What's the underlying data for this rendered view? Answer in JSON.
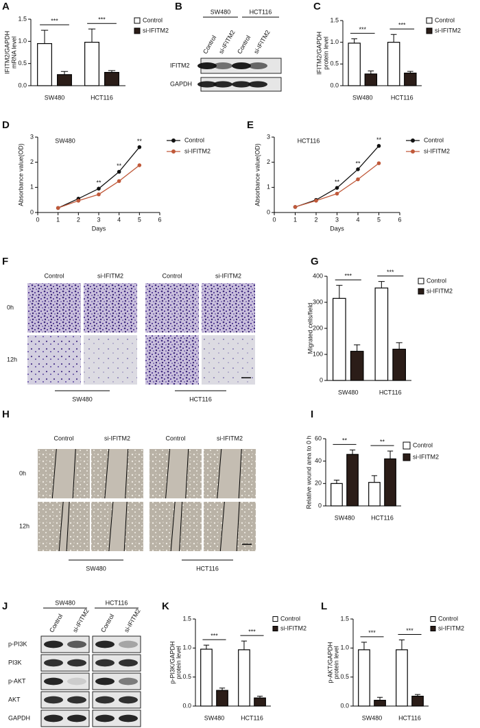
{
  "chart_data": [
    {
      "type": "bar",
      "panel": "A",
      "categories": [
        "SW480",
        "HCT116"
      ],
      "series": [
        {
          "name": "Control",
          "color": "#ffffff",
          "values": [
            0.95,
            0.98
          ],
          "errors": [
            0.3,
            0.3
          ]
        },
        {
          "name": "si-IFITM2",
          "color": "#2b1d18",
          "values": [
            0.25,
            0.3
          ],
          "errors": [
            0.07,
            0.04
          ]
        }
      ],
      "significance": [
        "***",
        "***"
      ],
      "y_label": [
        "IFITM2/GAPDH",
        "mRNA level"
      ],
      "ylim": [
        0,
        1.5
      ],
      "yticks": [
        {
          "value": 0,
          "label": "0.0"
        },
        0.5,
        {
          "value": 1,
          "label": "1.0"
        },
        1.5
      ]
    },
    {
      "type": "bar",
      "panel": "C",
      "categories": [
        "SW480",
        "HCT116"
      ],
      "series": [
        {
          "name": "Control",
          "color": "#ffffff",
          "values": [
            0.98,
            1.0
          ],
          "errors": [
            0.1,
            0.18
          ]
        },
        {
          "name": "si-IFITM2",
          "color": "#2b1d18",
          "values": [
            0.27,
            0.29
          ],
          "errors": [
            0.07,
            0.04
          ]
        }
      ],
      "significance": [
        "***",
        "***"
      ],
      "y_label": [
        "IFITM2/GAPDH",
        "protein level"
      ],
      "ylim": [
        0,
        1.5
      ],
      "yticks": [
        {
          "value": 0,
          "label": "0.0"
        },
        0.5,
        {
          "value": 1,
          "label": "1.0"
        },
        1.5
      ]
    },
    {
      "type": "line",
      "panel": "D",
      "title": "SW480",
      "x": [
        1,
        2,
        3,
        4,
        5
      ],
      "series": [
        {
          "name": "Control",
          "color": "#111111",
          "values": [
            0.18,
            0.55,
            0.95,
            1.62,
            2.6
          ]
        },
        {
          "name": "si-IFITM2",
          "color": "#c0593a",
          "values": [
            0.18,
            0.47,
            0.72,
            1.25,
            1.88
          ]
        }
      ],
      "significance": [
        null,
        null,
        "**",
        "**",
        "**"
      ],
      "x_label": "Days",
      "y_label": [
        "Absorbance value(OD)"
      ],
      "xlim": [
        0,
        6
      ],
      "xticks": [
        0,
        1,
        2,
        3,
        4,
        5,
        6
      ],
      "ylim": [
        0,
        3
      ],
      "yticks": [
        0,
        1,
        2,
        3
      ]
    },
    {
      "type": "line",
      "panel": "E",
      "title": "HCT116",
      "x": [
        1,
        2,
        3,
        4,
        5
      ],
      "series": [
        {
          "name": "Control",
          "color": "#111111",
          "values": [
            0.22,
            0.5,
            0.98,
            1.72,
            2.65
          ]
        },
        {
          "name": "si-IFITM2",
          "color": "#c0593a",
          "values": [
            0.22,
            0.47,
            0.75,
            1.32,
            1.96
          ]
        }
      ],
      "significance": [
        null,
        null,
        "**",
        "**",
        "**"
      ],
      "x_label": "Days",
      "y_label": [
        "Absorbance value(OD)"
      ],
      "xlim": [
        0,
        6
      ],
      "xticks": [
        0,
        1,
        2,
        3,
        4,
        5,
        6
      ],
      "ylim": [
        0,
        3
      ],
      "yticks": [
        0,
        1,
        2,
        3
      ]
    },
    {
      "type": "bar",
      "panel": "G",
      "categories": [
        "SW480",
        "HCT116"
      ],
      "series": [
        {
          "name": "Control",
          "color": "#ffffff",
          "values": [
            315,
            355
          ],
          "errors": [
            50,
            25
          ]
        },
        {
          "name": "si-IFITM2",
          "color": "#2b1d18",
          "values": [
            112,
            120
          ],
          "errors": [
            25,
            25
          ]
        }
      ],
      "significance": [
        "***",
        "***"
      ],
      "y_label": [
        "Migrated cells/field"
      ],
      "ylim": [
        0,
        400
      ],
      "yticks": [
        0,
        100,
        200,
        300,
        400
      ]
    },
    {
      "type": "bar",
      "panel": "I",
      "categories": [
        "SW480",
        "HCT116"
      ],
      "series": [
        {
          "name": "Control",
          "color": "#ffffff",
          "values": [
            20,
            21
          ],
          "errors": [
            3,
            6
          ]
        },
        {
          "name": "si-IFITM2",
          "color": "#2b1d18",
          "values": [
            46,
            42
          ],
          "errors": [
            4,
            7
          ]
        }
      ],
      "significance": [
        "**",
        "**"
      ],
      "y_label": [
        "Relative wound area to 0 h"
      ],
      "ylim": [
        0,
        60
      ],
      "yticks": [
        0,
        20,
        40,
        60
      ]
    },
    {
      "type": "bar",
      "panel": "K",
      "categories": [
        "SW480",
        "HCT116"
      ],
      "series": [
        {
          "name": "Control",
          "color": "#ffffff",
          "values": [
            0.98,
            0.97
          ],
          "errors": [
            0.07,
            0.15
          ]
        },
        {
          "name": "si-IFITM2",
          "color": "#2b1d18",
          "values": [
            0.27,
            0.14
          ],
          "errors": [
            0.04,
            0.03
          ]
        }
      ],
      "significance": [
        "***",
        "***"
      ],
      "y_label": [
        "p-PI3K/GAPDH",
        "protein level"
      ],
      "ylim": [
        0,
        1.5
      ],
      "yticks": [
        {
          "value": 0,
          "label": "0.0"
        },
        0.5,
        {
          "value": 1,
          "label": "1.0"
        },
        1.5
      ]
    },
    {
      "type": "bar",
      "panel": "L",
      "categories": [
        "SW480",
        "HCT116"
      ],
      "series": [
        {
          "name": "Control",
          "color": "#ffffff",
          "values": [
            0.97,
            0.97
          ],
          "errors": [
            0.13,
            0.17
          ]
        },
        {
          "name": "si-IFITM2",
          "color": "#2b1d18",
          "values": [
            0.1,
            0.17
          ],
          "errors": [
            0.05,
            0.03
          ]
        }
      ],
      "significance": [
        "***",
        "***"
      ],
      "y_label": [
        "p-AKT/GAPDH",
        "protein level"
      ],
      "ylim": [
        0,
        1.5
      ],
      "yticks": [
        {
          "value": 0,
          "label": "0.0"
        },
        0.5,
        {
          "value": 1,
          "label": "1.0"
        },
        1.5
      ]
    }
  ],
  "blot_b": {
    "panel": "B",
    "groups": [
      "SW480",
      "HCT116"
    ],
    "lanes": [
      "Control",
      "si-IFITM2",
      "Control",
      "si-IFITM2"
    ],
    "rows": [
      "IFITM2",
      "GAPDH"
    ]
  },
  "migration_f": {
    "panel": "F",
    "columns": [
      "Control",
      "si-IFITM2",
      "Control",
      "si-IFITM2"
    ],
    "rows": [
      "0h",
      "12h"
    ],
    "groups": [
      "SW480",
      "HCT116"
    ]
  },
  "wound_h": {
    "panel": "H",
    "columns": [
      "Control",
      "si-IFITM2",
      "Control",
      "si-IFITM2"
    ],
    "rows": [
      "0h",
      "12h"
    ],
    "groups": [
      "SW480",
      "HCT116"
    ]
  },
  "blot_j": {
    "panel": "J",
    "groups": [
      "SW480",
      "HCT116"
    ],
    "lanes": [
      "Control",
      "si-IFITM2",
      "Control",
      "si-IFITM2"
    ],
    "rows": [
      "p-PI3K",
      "PI3K",
      "p-AKT",
      "AKT",
      "GAPDH"
    ]
  }
}
